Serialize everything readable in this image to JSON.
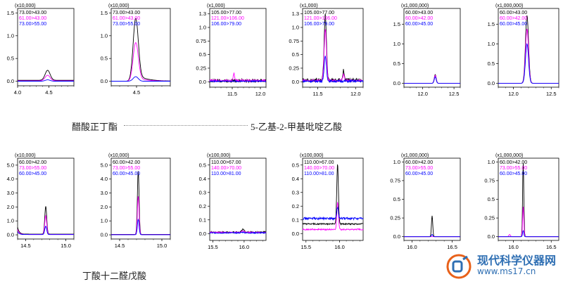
{
  "captions": {
    "row1_left": "醋酸正丁酯",
    "row1_right": "5-乙基-2-甲基吡啶乙酸",
    "row2_left": "丁酸十二醛戊酸"
  },
  "watermark": {
    "title": "现代科学仪器网",
    "url": "www.ms17.cn"
  },
  "colors": {
    "black": "#000000",
    "magenta": "#ff00ff",
    "blue": "#0000ff"
  },
  "chart_data": [
    {
      "type": "line",
      "multiplier": "(x10,000)",
      "xlim": [
        4.0,
        4.9
      ],
      "xticks": [
        4.0,
        4.5
      ],
      "ylim": [
        -0.1,
        1.6
      ],
      "yticks": [
        0.0,
        0.5,
        1.0,
        1.5
      ],
      "series": [
        {
          "name": "73.00>43.00",
          "color": "black",
          "peak": 4.48,
          "height": 0.22,
          "width": 0.04,
          "base": 0.02
        },
        {
          "name": "61.00>43.00",
          "color": "magenta",
          "peak": 4.48,
          "height": 0.12,
          "width": 0.04,
          "base": 0.01
        },
        {
          "name": "73.00>55.00",
          "color": "blue",
          "peak": 4.48,
          "height": 0.03,
          "width": 0.04,
          "base": 0.0
        }
      ]
    },
    {
      "type": "line",
      "multiplier": "(x10,000)",
      "xlim": [
        4.2,
        4.9
      ],
      "xticks": [
        4.5
      ],
      "ylim": [
        -0.1,
        1.6
      ],
      "yticks": [
        0.0,
        0.5,
        1.0,
        1.5
      ],
      "series": [
        {
          "name": "73.00>43.00",
          "color": "black",
          "peak": 4.49,
          "height": 1.38,
          "width": 0.03,
          "base": 0.0,
          "tail": 0.15
        },
        {
          "name": "61.00>43.00",
          "color": "magenta",
          "peak": 4.49,
          "height": 0.85,
          "width": 0.03,
          "base": 0.0,
          "tail": 0.08
        },
        {
          "name": "73.00>55.00",
          "color": "blue",
          "peak": 4.49,
          "height": 0.1,
          "width": 0.03,
          "base": 0.0
        }
      ]
    },
    {
      "type": "line",
      "multiplier": "(x1,000)",
      "xlim": [
        11.1,
        12.1
      ],
      "xticks": [
        11.5,
        12.0
      ],
      "ylim": [
        -0.1,
        1.35
      ],
      "yticks": [
        0.0,
        0.25,
        0.5,
        0.75,
        1.0,
        1.25
      ],
      "series": [
        {
          "name": "105.00>77.00",
          "color": "black",
          "peak": 11.5,
          "height": 0.0,
          "width": 0.03,
          "base": 0.02,
          "noise": 0.03
        },
        {
          "name": "121.00>106.00",
          "color": "magenta",
          "peak": 11.53,
          "height": 0.14,
          "width": 0.01,
          "base": 0.02,
          "noise": 0.02
        },
        {
          "name": "106.00>79.00",
          "color": "blue",
          "peak": 11.5,
          "height": 0.0,
          "width": 0.03,
          "base": 0.01,
          "noise": 0.01
        }
      ]
    },
    {
      "type": "line",
      "multiplier": "(x1,000)",
      "xlim": [
        11.3,
        12.1
      ],
      "xticks": [
        11.5,
        12.0
      ],
      "ylim": [
        -0.1,
        1.35
      ],
      "yticks": [
        0.0,
        0.25,
        0.5,
        0.75,
        1.0,
        1.25
      ],
      "series": [
        {
          "name": "105.00>77.00",
          "color": "black",
          "peak": 11.6,
          "height": 1.2,
          "width": 0.015,
          "base": 0.03,
          "noise": 0.03,
          "peak2": 11.84,
          "height2": 0.18
        },
        {
          "name": "121.00>106.00",
          "color": "magenta",
          "peak": 11.6,
          "height": 0.95,
          "width": 0.015,
          "base": 0.02,
          "noise": 0.02,
          "peak2": 11.84,
          "height2": 0.12
        },
        {
          "name": "106.00>79.00",
          "color": "blue",
          "peak": 11.6,
          "height": 0.45,
          "width": 0.015,
          "base": 0.01,
          "noise": 0.02
        }
      ]
    },
    {
      "type": "line",
      "multiplier": "(x1,000,000)",
      "xlim": [
        11.7,
        12.6
      ],
      "xticks": [
        12.0,
        12.5
      ],
      "ylim": [
        -0.1,
        1.9
      ],
      "yticks": [
        0.0,
        0.5,
        1.0,
        1.5
      ],
      "series": [
        {
          "name": "60.00>43.00",
          "color": "black",
          "peak": 12.2,
          "height": 0.22,
          "width": 0.015,
          "base": 0.0
        },
        {
          "name": "60.00>42.00",
          "color": "magenta",
          "peak": 12.2,
          "height": 0.2,
          "width": 0.015,
          "base": 0.0
        },
        {
          "name": "60.00>45.00",
          "color": "blue",
          "peak": 12.2,
          "height": 0.16,
          "width": 0.015,
          "base": 0.0
        }
      ]
    },
    {
      "type": "line",
      "multiplier": "(x1,000,000)",
      "xlim": [
        11.8,
        12.6
      ],
      "xticks": [
        12.0,
        12.5
      ],
      "ylim": [
        -0.1,
        1.9
      ],
      "yticks": [
        0.0,
        0.5,
        1.0,
        1.5
      ],
      "series": [
        {
          "name": "60.00>43.00",
          "color": "black",
          "peak": 12.18,
          "height": 1.72,
          "width": 0.02,
          "base": 0.0
        },
        {
          "name": "60.00>42.00",
          "color": "magenta",
          "peak": 12.18,
          "height": 1.38,
          "width": 0.02,
          "base": 0.0
        },
        {
          "name": "60.00>45.00",
          "color": "blue",
          "peak": 12.18,
          "height": 1.0,
          "width": 0.02,
          "base": 0.0
        }
      ]
    },
    {
      "type": "line",
      "multiplier": "(x10,000)",
      "xlim": [
        14.4,
        15.1
      ],
      "xticks": [
        14.5,
        15.0
      ],
      "ylim": [
        -0.3,
        5.5
      ],
      "yticks": [
        0.0,
        1.0,
        2.0,
        3.0,
        4.0,
        5.0
      ],
      "series": [
        {
          "name": "60.00>42.00",
          "color": "black",
          "peak": 14.75,
          "height": 2.0,
          "width": 0.012,
          "base": 0.05,
          "start": 0.5
        },
        {
          "name": "73.00>55.00",
          "color": "magenta",
          "peak": 14.75,
          "height": 1.35,
          "width": 0.012,
          "base": 0.03,
          "start": 0.35
        },
        {
          "name": "60.00>45.00",
          "color": "blue",
          "peak": 14.75,
          "height": 0.6,
          "width": 0.012,
          "base": 0.02,
          "start": 0.2
        }
      ]
    },
    {
      "type": "line",
      "multiplier": "(x10,000)",
      "xlim": [
        14.4,
        15.1
      ],
      "xticks": [
        14.5,
        15.0
      ],
      "ylim": [
        -0.3,
        5.5
      ],
      "yticks": [
        0.0,
        1.0,
        2.0,
        3.0,
        4.0,
        5.0
      ],
      "series": [
        {
          "name": "60.00>42.00",
          "color": "black",
          "peak": 14.72,
          "height": 4.55,
          "width": 0.01,
          "base": 0.03
        },
        {
          "name": "73.00>55.00",
          "color": "magenta",
          "peak": 14.72,
          "height": 2.75,
          "width": 0.01,
          "base": 0.02
        },
        {
          "name": "60.00>45.00",
          "color": "blue",
          "peak": 14.72,
          "height": 1.1,
          "width": 0.01,
          "base": 0.01
        }
      ]
    },
    {
      "type": "line",
      "multiplier": "(x100,000)",
      "xlim": [
        15.45,
        16.35
      ],
      "xticks": [
        15.5,
        16.0
      ],
      "ylim": [
        -0.05,
        0.55
      ],
      "yticks": [
        0.0,
        0.1,
        0.2,
        0.3,
        0.4,
        0.5
      ],
      "series": [
        {
          "name": "110.00>67.00",
          "color": "black",
          "peak": 15.98,
          "height": 0.02,
          "width": 0.02,
          "base": 0.01,
          "noise": 0.005
        },
        {
          "name": "140.00>70.00",
          "color": "magenta",
          "peak": 15.98,
          "height": 0.01,
          "width": 0.02,
          "base": 0.008,
          "noise": 0.004
        },
        {
          "name": "110.00>81.00",
          "color": "blue",
          "peak": 15.98,
          "height": 0.005,
          "width": 0.02,
          "base": 0.005,
          "noise": 0.004
        }
      ]
    },
    {
      "type": "line",
      "multiplier": "(x100,000)",
      "xlim": [
        15.45,
        16.35
      ],
      "xticks": [
        15.5,
        16.0
      ],
      "ylim": [
        -0.05,
        0.55
      ],
      "yticks": [
        0.0,
        0.1,
        0.2,
        0.3,
        0.4,
        0.5
      ],
      "series": [
        {
          "name": "110.00>67.00",
          "color": "black",
          "peak": 15.97,
          "height": 0.44,
          "width": 0.012,
          "base": 0.07,
          "noise": 0.005
        },
        {
          "name": "140.00>70.00",
          "color": "magenta",
          "peak": 15.97,
          "height": 0.2,
          "width": 0.012,
          "base": 0.03,
          "noise": 0.005
        },
        {
          "name": "110.00>81.00",
          "color": "blue",
          "peak": 15.97,
          "height": 0.08,
          "width": 0.012,
          "base": 0.11,
          "noise": 0.008
        }
      ]
    },
    {
      "type": "line",
      "multiplier": "(x1,000,000)",
      "xlim": [
        15.9,
        16.6
      ],
      "xticks": [
        16.0,
        16.5
      ],
      "ylim": [
        -0.05,
        1.05
      ],
      "yticks": [
        0.0,
        0.25,
        0.5,
        0.75,
        1.0
      ],
      "series": [
        {
          "name": "60.00>42.00",
          "color": "black",
          "peak": 16.25,
          "height": 0.28,
          "width": 0.008,
          "base": 0.0
        },
        {
          "name": "73.00>55.00",
          "color": "magenta",
          "peak": 16.25,
          "height": 0.0,
          "width": 0.008,
          "base": 0.0
        },
        {
          "name": "60.00>45.00",
          "color": "blue",
          "peak": 16.25,
          "height": 0.03,
          "width": 0.008,
          "base": 0.0
        }
      ]
    },
    {
      "type": "line",
      "multiplier": "(x1,000,000)",
      "xlim": [
        15.8,
        16.6
      ],
      "xticks": [
        16.0,
        16.5
      ],
      "ylim": [
        -0.05,
        1.05
      ],
      "yticks": [
        0.0,
        0.25,
        0.5,
        0.75,
        1.0
      ],
      "series": [
        {
          "name": "60.00>42.00",
          "color": "black",
          "peak": 16.13,
          "height": 0.98,
          "width": 0.008,
          "base": 0.0
        },
        {
          "name": "73.00>55.00",
          "color": "magenta",
          "peak": 16.13,
          "height": 0.4,
          "width": 0.008,
          "base": 0.0,
          "peak2": 15.95,
          "height2": 0.03
        },
        {
          "name": "60.00>45.00",
          "color": "blue",
          "peak": 16.13,
          "height": 0.08,
          "width": 0.008,
          "base": 0.0
        }
      ]
    }
  ]
}
